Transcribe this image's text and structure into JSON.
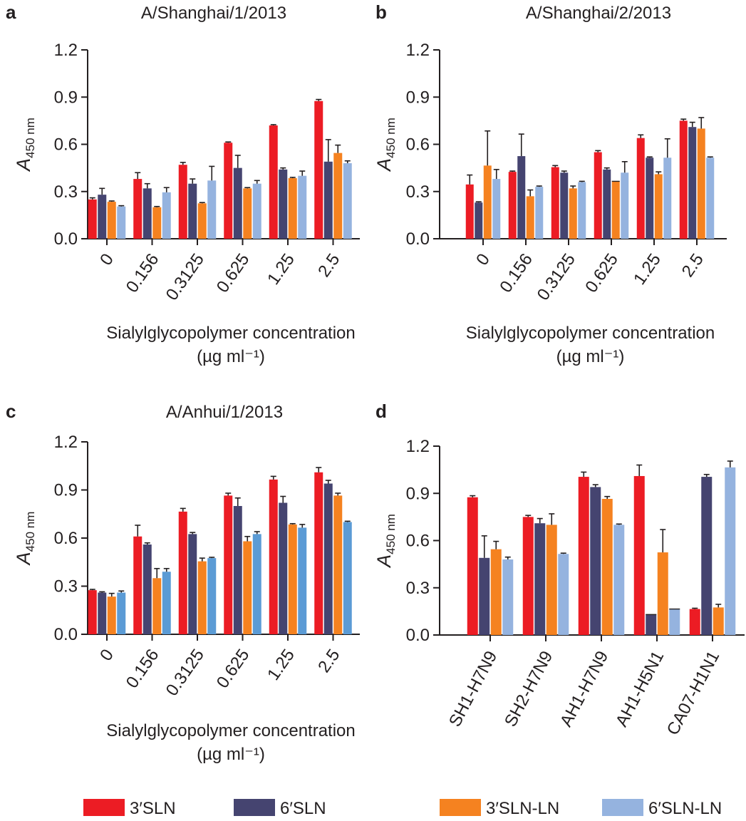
{
  "colors": {
    "3SLN": "#ec1c24",
    "6SLN": "#454470",
    "3SLN_LN": "#f58220",
    "6SLN_LN": "#95b3df",
    "6SLN_LN_panel_c": "#5b9bd5",
    "axis": "#231f20"
  },
  "legend": {
    "items": [
      {
        "key": "3SLN",
        "label": "3′SLN"
      },
      {
        "key": "6SLN",
        "label": "6′SLN"
      },
      {
        "key": "3SLN_LN",
        "label": "3′SLN-LN"
      },
      {
        "key": "6SLN_LN",
        "label": "6′SLN-LN"
      }
    ]
  },
  "chart_data": [
    {
      "panel": "a",
      "type": "bar",
      "title": "A/Shanghai/1/2013",
      "xlabel": "Sialylglycopolymer concentration",
      "xlabel_unit": "(µg ml⁻¹)",
      "ylabel": "A",
      "ylabel_sub": "450 nm",
      "ylim": [
        0,
        1.2
      ],
      "yticks": [
        "0.0",
        "0.3",
        "0.6",
        "0.9",
        "1.2"
      ],
      "categories": [
        "0",
        "0.156",
        "0.3125",
        "0.625",
        "1.25",
        "2.5"
      ],
      "series": [
        {
          "key": "3SLN",
          "name": "3′SLN",
          "values": [
            0.25,
            0.38,
            0.47,
            0.61,
            0.72,
            0.875
          ],
          "errors": [
            0.01,
            0.04,
            0.015,
            0.005,
            0.005,
            0.01
          ]
        },
        {
          "key": "6SLN",
          "name": "6′SLN",
          "values": [
            0.28,
            0.32,
            0.35,
            0.45,
            0.44,
            0.49
          ],
          "errors": [
            0.04,
            0.03,
            0.03,
            0.08,
            0.01,
            0.14
          ]
        },
        {
          "key": "3SLN_LN",
          "name": "3′SLN-LN",
          "values": [
            0.235,
            0.2,
            0.225,
            0.32,
            0.385,
            0.545
          ],
          "errors": [
            0.005,
            0.005,
            0.005,
            0.005,
            0.005,
            0.05
          ]
        },
        {
          "key": "6SLN_LN",
          "name": "6′SLN-LN",
          "values": [
            0.205,
            0.295,
            0.37,
            0.35,
            0.4,
            0.48
          ],
          "errors": [
            0.005,
            0.03,
            0.09,
            0.02,
            0.03,
            0.015
          ]
        }
      ]
    },
    {
      "panel": "b",
      "type": "bar",
      "title": "A/Shanghai/2/2013",
      "xlabel": "Sialylglycopolymer concentration",
      "xlabel_unit": "(µg ml⁻¹)",
      "ylabel": "A",
      "ylabel_sub": "450 nm",
      "ylim": [
        0,
        1.2
      ],
      "yticks": [
        "0.0",
        "0.3",
        "0.6",
        "0.9",
        "1.2"
      ],
      "categories": [
        "0",
        "0.156",
        "0.3125",
        "0.625",
        "1.25",
        "2.5"
      ],
      "series": [
        {
          "key": "3SLN",
          "name": "3′SLN",
          "values": [
            0.345,
            0.425,
            0.455,
            0.55,
            0.64,
            0.75
          ],
          "errors": [
            0.06,
            0.005,
            0.01,
            0.01,
            0.02,
            0.01
          ]
        },
        {
          "key": "6SLN",
          "name": "6′SLN",
          "values": [
            0.23,
            0.525,
            0.42,
            0.44,
            0.515,
            0.71
          ],
          "errors": [
            0.005,
            0.14,
            0.01,
            0.01,
            0.005,
            0.03
          ]
        },
        {
          "key": "3SLN_LN",
          "name": "3′SLN-LN",
          "values": [
            0.465,
            0.27,
            0.32,
            0.365,
            0.41,
            0.7
          ],
          "errors": [
            0.22,
            0.04,
            0.015,
            0.0,
            0.015,
            0.07
          ]
        },
        {
          "key": "6SLN_LN",
          "name": "6′SLN-LN",
          "values": [
            0.38,
            0.33,
            0.36,
            0.42,
            0.515,
            0.515
          ],
          "errors": [
            0.06,
            0.005,
            0.005,
            0.07,
            0.12,
            0.005
          ]
        }
      ]
    },
    {
      "panel": "c",
      "type": "bar",
      "title": "A/Anhui/1/2013",
      "xlabel": "Sialylglycopolymer concentration",
      "xlabel_unit": "(µg ml⁻¹)",
      "ylabel": "A",
      "ylabel_sub": "450 nm",
      "ylim": [
        0,
        1.2
      ],
      "yticks": [
        "0.0",
        "0.3",
        "0.6",
        "0.9",
        "1.2"
      ],
      "categories": [
        "0",
        "0.156",
        "0.3125",
        "0.625",
        "1.25",
        "2.5"
      ],
      "series": [
        {
          "key": "3SLN",
          "name": "3′SLN",
          "values": [
            0.275,
            0.61,
            0.765,
            0.865,
            0.965,
            1.01
          ],
          "errors": [
            0.005,
            0.07,
            0.02,
            0.015,
            0.02,
            0.03
          ]
        },
        {
          "key": "6SLN",
          "name": "6′SLN",
          "values": [
            0.26,
            0.56,
            0.625,
            0.8,
            0.82,
            0.94
          ],
          "errors": [
            0.005,
            0.01,
            0.01,
            0.05,
            0.04,
            0.02
          ]
        },
        {
          "key": "3SLN_LN",
          "name": "3′SLN-LN",
          "values": [
            0.235,
            0.35,
            0.455,
            0.58,
            0.685,
            0.865
          ],
          "errors": [
            0.02,
            0.06,
            0.02,
            0.03,
            0.005,
            0.015
          ]
        },
        {
          "key": "6SLN_LN_panel_c",
          "name": "6′SLN-LN",
          "values": [
            0.26,
            0.39,
            0.475,
            0.625,
            0.665,
            0.7
          ],
          "errors": [
            0.01,
            0.02,
            0.005,
            0.015,
            0.02,
            0.005
          ]
        }
      ]
    },
    {
      "panel": "d",
      "type": "bar",
      "title": "",
      "xlabel": "",
      "xlabel_unit": "",
      "ylabel": "A",
      "ylabel_sub": "450 nm",
      "ylim": [
        0,
        1.2
      ],
      "yticks": [
        "0.0",
        "0.3",
        "0.6",
        "0.9",
        "1.2"
      ],
      "categories": [
        "SH1-H7N9",
        "SH2-H7N9",
        "AH1-H7N9",
        "AH1-H5N1",
        "CA07-H1N1"
      ],
      "series": [
        {
          "key": "3SLN",
          "name": "3′SLN",
          "values": [
            0.875,
            0.75,
            1.005,
            1.01,
            0.165
          ],
          "errors": [
            0.01,
            0.01,
            0.03,
            0.07,
            0.005
          ]
        },
        {
          "key": "6SLN",
          "name": "6′SLN",
          "values": [
            0.49,
            0.71,
            0.94,
            0.13,
            1.005
          ],
          "errors": [
            0.14,
            0.03,
            0.015,
            0.0,
            0.015
          ]
        },
        {
          "key": "3SLN_LN",
          "name": "3′SLN-LN",
          "values": [
            0.545,
            0.7,
            0.865,
            0.525,
            0.175
          ],
          "errors": [
            0.05,
            0.07,
            0.015,
            0.145,
            0.02
          ]
        },
        {
          "key": "6SLN_LN",
          "name": "6′SLN-LN",
          "values": [
            0.48,
            0.515,
            0.7,
            0.165,
            1.065
          ],
          "errors": [
            0.015,
            0.005,
            0.005,
            0.0,
            0.04
          ]
        }
      ]
    }
  ]
}
